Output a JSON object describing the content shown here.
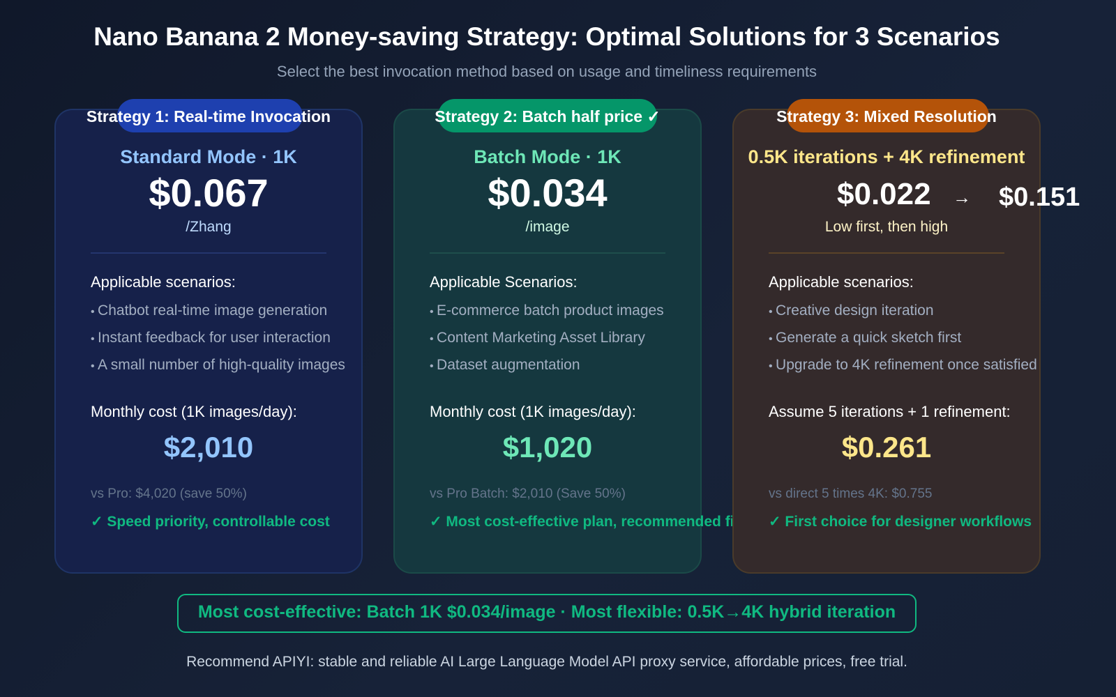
{
  "title": "Nano Banana 2 Money-saving Strategy: Optimal Solutions for 3 Scenarios",
  "subtitle": "Select the best invocation method based on usage and timeliness requirements",
  "cards": [
    {
      "badge": "Strategy 1: Real-time Invocation",
      "mode": "Standard Mode · 1K",
      "price": "$0.067",
      "unit": "/Zhang",
      "section": "Applicable scenarios:",
      "items": [
        "Chatbot real-time image generation",
        "Instant feedback for user interaction",
        "A small number of high-quality images"
      ],
      "monthly_label": "Monthly cost (1K images/day):",
      "monthly": "$2,010",
      "compare": "vs Pro: $4,020 (save 50%)",
      "verdict": "✓ Speed priority, controllable cost",
      "accent": "#93c5fd"
    },
    {
      "badge": "Strategy 2: Batch half price ✓",
      "mode": "Batch Mode · 1K",
      "price": "$0.034",
      "unit": "/image",
      "section": "Applicable Scenarios:",
      "items": [
        "E-commerce batch product images",
        "Content Marketing Asset Library",
        "Dataset augmentation"
      ],
      "monthly_label": "Monthly cost (1K images/day):",
      "monthly": "$1,020",
      "compare": "vs Pro Batch: $2,010 (Save 50%)",
      "verdict": "✓ Most cost-effective plan, recommended first choice",
      "accent": "#6ee7b7"
    },
    {
      "badge": "Strategy 3: Mixed Resolution",
      "mode": "0.5K iterations + 4K refinement",
      "price_low": "$0.022",
      "arrow": "→",
      "price_high": "$0.151",
      "unit": "Low first, then high",
      "section": "Applicable scenarios:",
      "items": [
        "Creative design iteration",
        "Generate a quick sketch first",
        "Upgrade to 4K refinement once satisfied"
      ],
      "monthly_label": "Assume 5 iterations + 1 refinement:",
      "monthly": "$0.261",
      "compare": "vs direct 5 times 4K: $0.755",
      "verdict": "✓ First choice for designer workflows",
      "accent": "#fde68a"
    }
  ],
  "summary": "Most cost-effective: Batch 1K $0.034/image · Most flexible: 0.5K→4K hybrid iteration",
  "footer_note": "Recommend APIYI: stable and reliable AI Large Language Model API proxy service, affordable prices, free trial."
}
